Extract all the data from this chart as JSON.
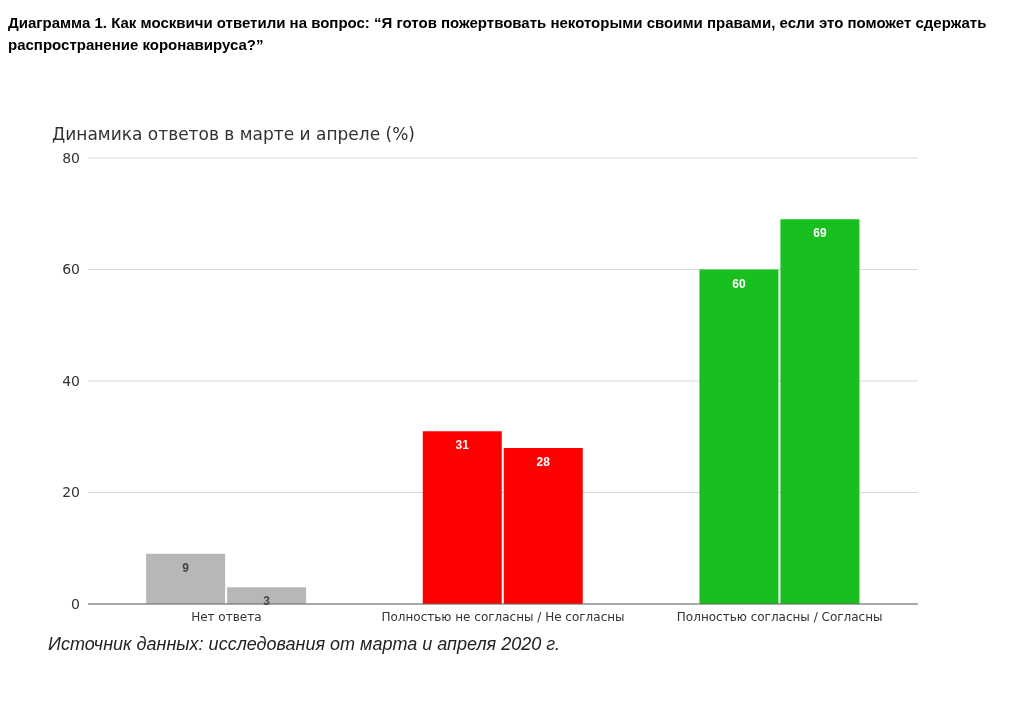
{
  "chart_data": {
    "type": "bar",
    "title": "Диаграмма 1. Как москвичи ответили на вопрос: “Я готов пожертвовать некоторыми своими правами, если это поможет сдержать распространение коронавируса?”",
    "subtitle": "Динамика ответов в марте и апреле (%)",
    "categories": [
      "Нет ответа",
      "Полностью не согласны / Не согласны",
      "Полностью согласны / Согласны"
    ],
    "series": [
      {
        "colors": [
          "#b7b7b7",
          "#ff0000",
          "#17bf1f"
        ],
        "values": [
          9,
          31,
          60
        ]
      },
      {
        "colors": [
          "#b7b7b7",
          "#ff0000",
          "#17bf1f"
        ],
        "values": [
          3,
          28,
          69
        ]
      }
    ],
    "ylim": [
      0,
      80
    ],
    "yticks": [
      0,
      20,
      40,
      60,
      80
    ],
    "grid": "y",
    "data_labels": true,
    "annotations": [
      "Источник данных: исследования от марта и апреля 2020 г."
    ]
  }
}
